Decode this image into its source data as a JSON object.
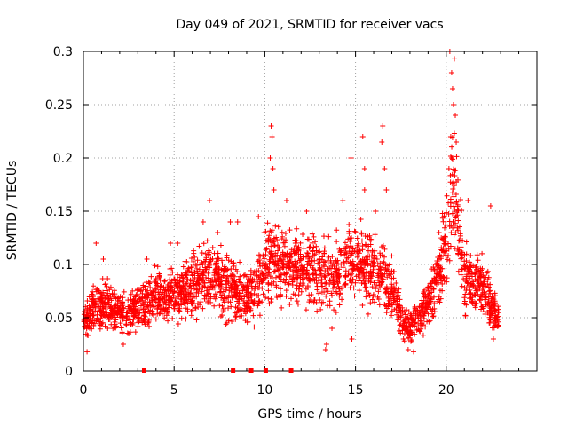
{
  "chart_data": {
    "type": "scatter",
    "title": "Day 049 of 2021, SRMTID for receiver vacs",
    "xlabel": "GPS time / hours",
    "ylabel": "SRMTID / TECUs",
    "xlim": [
      0,
      25
    ],
    "ylim": [
      0,
      0.3
    ],
    "xticks": [
      0,
      5,
      10,
      15,
      20
    ],
    "yticks": [
      0,
      0.05,
      0.1,
      0.15,
      0.2,
      0.25,
      0.3
    ],
    "ytick_labels": [
      "0",
      "0.05",
      "0.1",
      "0.15",
      "0.2",
      "0.25",
      "0.3"
    ],
    "grid": true,
    "marker": "plus",
    "color": "#ff0000",
    "data_x_range": [
      0,
      22.9
    ],
    "baseline_markers_x": [
      3.35,
      8.25,
      9.25,
      10.05,
      11.45
    ],
    "trend": [
      [
        0.0,
        0.045
      ],
      [
        0.5,
        0.06
      ],
      [
        1.0,
        0.06
      ],
      [
        1.5,
        0.06
      ],
      [
        2.0,
        0.058
      ],
      [
        2.5,
        0.055
      ],
      [
        3.0,
        0.06
      ],
      [
        3.5,
        0.065
      ],
      [
        4.0,
        0.07
      ],
      [
        4.5,
        0.07
      ],
      [
        5.0,
        0.07
      ],
      [
        5.5,
        0.075
      ],
      [
        6.0,
        0.08
      ],
      [
        6.5,
        0.085
      ],
      [
        7.0,
        0.09
      ],
      [
        7.5,
        0.085
      ],
      [
        8.0,
        0.08
      ],
      [
        8.5,
        0.075
      ],
      [
        9.0,
        0.07
      ],
      [
        9.5,
        0.075
      ],
      [
        10.0,
        0.1
      ],
      [
        10.5,
        0.105
      ],
      [
        11.0,
        0.1
      ],
      [
        11.5,
        0.095
      ],
      [
        12.0,
        0.1
      ],
      [
        12.5,
        0.095
      ],
      [
        13.0,
        0.09
      ],
      [
        13.5,
        0.09
      ],
      [
        14.0,
        0.095
      ],
      [
        14.5,
        0.1
      ],
      [
        15.0,
        0.105
      ],
      [
        15.5,
        0.1
      ],
      [
        16.0,
        0.09
      ],
      [
        16.5,
        0.085
      ],
      [
        17.0,
        0.075
      ],
      [
        17.5,
        0.05
      ],
      [
        18.0,
        0.04
      ],
      [
        18.5,
        0.05
      ],
      [
        19.0,
        0.065
      ],
      [
        19.5,
        0.085
      ],
      [
        20.0,
        0.12
      ],
      [
        20.3,
        0.18
      ],
      [
        20.6,
        0.15
      ],
      [
        21.0,
        0.09
      ],
      [
        21.5,
        0.085
      ],
      [
        22.0,
        0.08
      ],
      [
        22.5,
        0.06
      ],
      [
        22.9,
        0.05
      ]
    ],
    "spikes": [
      [
        20.2,
        0.3
      ],
      [
        20.3,
        0.28
      ],
      [
        20.45,
        0.293
      ],
      [
        20.35,
        0.265
      ],
      [
        20.4,
        0.25
      ],
      [
        20.5,
        0.24
      ],
      [
        20.25,
        0.22
      ],
      [
        20.55,
        0.215
      ],
      [
        20.3,
        0.2
      ],
      [
        20.15,
        0.19
      ],
      [
        10.35,
        0.23
      ],
      [
        10.4,
        0.22
      ],
      [
        10.3,
        0.2
      ],
      [
        10.45,
        0.19
      ],
      [
        16.5,
        0.23
      ],
      [
        16.45,
        0.215
      ],
      [
        15.4,
        0.22
      ],
      [
        15.5,
        0.19
      ],
      [
        14.75,
        0.2
      ],
      [
        16.6,
        0.19
      ],
      [
        10.5,
        0.17
      ],
      [
        13.4,
        0.025
      ],
      [
        13.35,
        0.02
      ],
      [
        15.5,
        0.17
      ],
      [
        21.2,
        0.16
      ],
      [
        22.45,
        0.155
      ],
      [
        6.95,
        0.16
      ],
      [
        8.5,
        0.14
      ],
      [
        9.65,
        0.145
      ],
      [
        19.6,
        0.13
      ],
      [
        12.3,
        0.15
      ],
      [
        14.3,
        0.16
      ],
      [
        16.1,
        0.15
      ],
      [
        16.7,
        0.17
      ],
      [
        11.2,
        0.16
      ],
      [
        0.2,
        0.018
      ],
      [
        0.7,
        0.12
      ],
      [
        1.1,
        0.105
      ],
      [
        2.2,
        0.025
      ],
      [
        3.5,
        0.105
      ],
      [
        4.8,
        0.12
      ],
      [
        5.2,
        0.12
      ],
      [
        6.6,
        0.14
      ],
      [
        8.1,
        0.14
      ],
      [
        7.4,
        0.13
      ],
      [
        13.7,
        0.04
      ],
      [
        14.8,
        0.03
      ],
      [
        17.9,
        0.02
      ],
      [
        18.2,
        0.018
      ],
      [
        22.6,
        0.03
      ]
    ]
  }
}
